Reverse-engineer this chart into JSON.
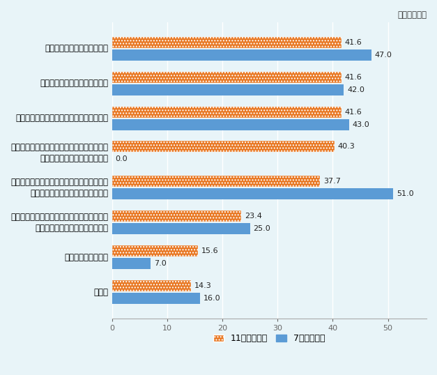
{
  "categories": [
    "工場の自動化、倉庫の自動化",
    "現地調達率のさらなる引き上げ",
    "部品や材料などの調達先のさらなる多様化",
    "新型コロナ等による隣離対策の強化（敷地内\nの宿泊施設整備、食糧備蓄等）",
    "カーボンピークアウト、カーボンニュートラ\nルへの対応（工場のグリーン化等）",
    "新型コロナに伴う隣離リスク回避等を理由と\nする駐在員の現地職員への切替え",
    "在庫水準の引き上げ",
    "その他"
  ],
  "nov_values": [
    41.6,
    41.6,
    41.6,
    40.3,
    37.7,
    23.4,
    15.6,
    14.3
  ],
  "jul_values": [
    47.0,
    42.0,
    43.0,
    0.0,
    51.0,
    25.0,
    7.0,
    16.0
  ],
  "nov_color": "#E87722",
  "jul_color": "#5B9BD5",
  "nov_hatch": "....",
  "background_color": "#E8F4F8",
  "plot_bg_color": "#E8F4F8",
  "unit_label": "（単位：％）",
  "legend_nov": "11月調査結果",
  "legend_jul": "7月調査結果",
  "xlim": [
    0,
    57
  ],
  "bar_height": 0.32,
  "label_fontsize": 8.5,
  "value_fontsize": 8.0,
  "legend_fontsize": 9
}
